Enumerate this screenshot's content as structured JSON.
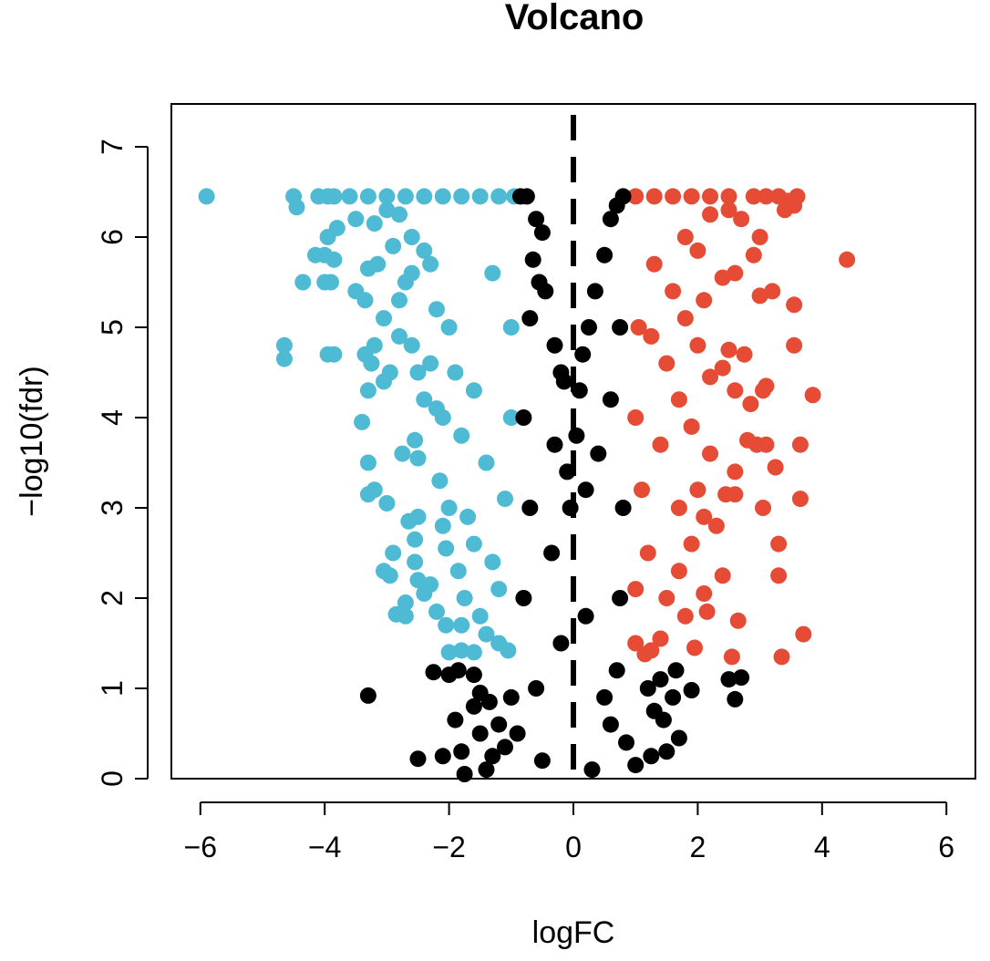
{
  "chart_data": {
    "type": "scatter",
    "title": "Volcano",
    "xlabel": "logFC",
    "ylabel": "−log10(fdr)",
    "xlim": [
      -6.5,
      6.5
    ],
    "ylim": [
      0,
      7
    ],
    "x_ticks": [
      "−6",
      "−4",
      "−2",
      "0",
      "2",
      "4",
      "6"
    ],
    "y_ticks": [
      "0",
      "1",
      "2",
      "3",
      "4",
      "5",
      "6",
      "7"
    ],
    "grid": false,
    "reference_line": {
      "x": 0,
      "style": "dashed",
      "color": "#000000"
    },
    "colors": {
      "down": "#4EBAD4",
      "up": "#E64B35",
      "not_significant": "#000000"
    },
    "series": [
      {
        "name": "",
        "color": "#4EBAD4",
        "points": [
          [
            -5.9,
            6.45
          ],
          [
            -4.5,
            6.45
          ],
          [
            -4.45,
            6.33
          ],
          [
            -4.1,
            6.45
          ],
          [
            -3.95,
            6.45
          ],
          [
            -3.85,
            6.45
          ],
          [
            -3.8,
            6.1
          ],
          [
            -3.95,
            6.0
          ],
          [
            -4.0,
            5.8
          ],
          [
            -3.85,
            5.75
          ],
          [
            -4.15,
            5.8
          ],
          [
            -4.35,
            5.5
          ],
          [
            -4.0,
            5.5
          ],
          [
            -3.9,
            5.5
          ],
          [
            -3.5,
            5.4
          ],
          [
            -3.35,
            5.3
          ],
          [
            -3.3,
            5.65
          ],
          [
            -3.15,
            5.7
          ],
          [
            -3.05,
            5.1
          ],
          [
            -2.8,
            5.3
          ],
          [
            -4.65,
            4.8
          ],
          [
            -4.65,
            4.65
          ],
          [
            -3.95,
            4.7
          ],
          [
            -3.85,
            4.7
          ],
          [
            -3.35,
            4.7
          ],
          [
            -3.2,
            4.8
          ],
          [
            -3.25,
            4.6
          ],
          [
            -3.05,
            4.4
          ],
          [
            -2.95,
            4.5
          ],
          [
            -2.8,
            4.9
          ],
          [
            -2.6,
            4.8
          ],
          [
            -2.5,
            4.5
          ],
          [
            -3.3,
            4.3
          ],
          [
            -3.4,
            3.95
          ],
          [
            -3.3,
            3.5
          ],
          [
            -3.2,
            3.2
          ],
          [
            -3.3,
            3.15
          ],
          [
            -3.0,
            3.05
          ],
          [
            -2.75,
            3.6
          ],
          [
            -2.55,
            3.75
          ],
          [
            -2.5,
            3.55
          ],
          [
            -2.65,
            2.85
          ],
          [
            -2.5,
            2.9
          ],
          [
            -2.55,
            2.65
          ],
          [
            -2.9,
            2.5
          ],
          [
            -3.05,
            2.3
          ],
          [
            -2.95,
            2.25
          ],
          [
            -2.55,
            2.4
          ],
          [
            -2.5,
            2.2
          ],
          [
            -2.4,
            2.05
          ],
          [
            -2.7,
            1.95
          ],
          [
            -2.85,
            1.82
          ],
          [
            -2.7,
            1.8
          ],
          [
            -2.3,
            2.15
          ],
          [
            -2.2,
            1.85
          ],
          [
            -2.05,
            1.7
          ],
          [
            -1.8,
            1.7
          ],
          [
            -2.0,
            1.4
          ],
          [
            -1.8,
            1.42
          ],
          [
            -1.6,
            1.4
          ],
          [
            -2.4,
            4.2
          ],
          [
            -2.3,
            4.6
          ],
          [
            -2.2,
            4.1
          ],
          [
            -2.1,
            4.0
          ],
          [
            -2.15,
            3.3
          ],
          [
            -2.0,
            3.0
          ],
          [
            -2.1,
            2.8
          ],
          [
            -2.05,
            2.55
          ],
          [
            -1.85,
            2.3
          ],
          [
            -1.75,
            2.0
          ],
          [
            -1.6,
            2.6
          ],
          [
            -1.5,
            1.8
          ],
          [
            -2.6,
            5.6
          ],
          [
            -2.3,
            5.7
          ],
          [
            -2.2,
            5.2
          ],
          [
            -2.0,
            5.0
          ],
          [
            -1.9,
            4.5
          ],
          [
            -1.8,
            3.8
          ],
          [
            -3.5,
            6.2
          ],
          [
            -3.2,
            6.15
          ],
          [
            -3.0,
            6.3
          ],
          [
            -2.8,
            6.25
          ],
          [
            -3.6,
            6.45
          ],
          [
            -3.3,
            6.45
          ],
          [
            -3.0,
            6.45
          ],
          [
            -2.7,
            6.45
          ],
          [
            -2.4,
            6.45
          ],
          [
            -2.1,
            6.45
          ],
          [
            -1.8,
            6.45
          ],
          [
            -1.5,
            6.45
          ],
          [
            -1.2,
            6.45
          ],
          [
            -0.95,
            6.45
          ],
          [
            -2.9,
            5.9
          ],
          [
            -2.6,
            6.0
          ],
          [
            -2.4,
            5.85
          ],
          [
            -2.7,
            5.5
          ],
          [
            -1.4,
            1.6
          ],
          [
            -1.2,
            1.5
          ],
          [
            -1.05,
            1.42
          ],
          [
            -1.3,
            2.4
          ],
          [
            -1.1,
            3.1
          ],
          [
            -1.0,
            4.0
          ],
          [
            -1.0,
            5.0
          ],
          [
            -1.3,
            5.6
          ],
          [
            -1.6,
            4.3
          ],
          [
            -1.4,
            3.5
          ],
          [
            -1.7,
            2.9
          ],
          [
            -1.2,
            2.1
          ]
        ]
      },
      {
        "name": "",
        "color": "#E64B35",
        "points": [
          [
            4.4,
            5.75
          ],
          [
            3.55,
            6.35
          ],
          [
            3.45,
            6.4
          ],
          [
            3.3,
            6.45
          ],
          [
            3.1,
            6.45
          ],
          [
            2.9,
            6.45
          ],
          [
            3.55,
            5.25
          ],
          [
            3.2,
            5.4
          ],
          [
            3.0,
            5.35
          ],
          [
            3.55,
            4.8
          ],
          [
            3.85,
            4.25
          ],
          [
            3.1,
            4.35
          ],
          [
            3.05,
            4.3
          ],
          [
            2.85,
            4.15
          ],
          [
            2.75,
            4.7
          ],
          [
            2.5,
            4.75
          ],
          [
            3.65,
            3.7
          ],
          [
            3.1,
            3.7
          ],
          [
            2.95,
            3.7
          ],
          [
            2.8,
            3.75
          ],
          [
            3.25,
            3.45
          ],
          [
            2.6,
            3.15
          ],
          [
            2.45,
            3.15
          ],
          [
            3.65,
            3.1
          ],
          [
            3.05,
            3.0
          ],
          [
            2.3,
            2.8
          ],
          [
            3.3,
            2.6
          ],
          [
            3.3,
            2.25
          ],
          [
            2.4,
            2.25
          ],
          [
            3.7,
            1.6
          ],
          [
            3.35,
            1.35
          ],
          [
            2.65,
            1.75
          ],
          [
            2.55,
            1.35
          ],
          [
            1.95,
            1.45
          ],
          [
            2.1,
            2.05
          ],
          [
            2.15,
            1.85
          ],
          [
            1.4,
            1.55
          ],
          [
            1.25,
            1.42
          ],
          [
            1.15,
            1.38
          ],
          [
            1.5,
            2.0
          ],
          [
            1.8,
            1.8
          ],
          [
            1.7,
            2.3
          ],
          [
            2.0,
            3.2
          ],
          [
            2.1,
            2.9
          ],
          [
            2.6,
            3.4
          ],
          [
            2.2,
            3.6
          ],
          [
            1.9,
            3.9
          ],
          [
            2.6,
            4.3
          ],
          [
            2.4,
            4.55
          ],
          [
            2.2,
            4.45
          ],
          [
            2.0,
            4.8
          ],
          [
            1.8,
            5.1
          ],
          [
            2.1,
            5.3
          ],
          [
            2.4,
            5.55
          ],
          [
            2.6,
            5.6
          ],
          [
            2.9,
            5.8
          ],
          [
            3.0,
            6.0
          ],
          [
            2.7,
            6.2
          ],
          [
            2.5,
            6.3
          ],
          [
            2.2,
            6.25
          ],
          [
            1.0,
            6.45
          ],
          [
            1.3,
            6.45
          ],
          [
            1.6,
            6.45
          ],
          [
            1.9,
            6.45
          ],
          [
            2.2,
            6.45
          ],
          [
            2.5,
            6.45
          ],
          [
            3.6,
            6.45
          ],
          [
            3.4,
            6.3
          ],
          [
            1.2,
            2.5
          ],
          [
            1.1,
            3.2
          ],
          [
            1.0,
            4.0
          ],
          [
            1.05,
            5.0
          ],
          [
            1.3,
            5.7
          ],
          [
            1.6,
            5.4
          ],
          [
            1.5,
            4.6
          ],
          [
            1.4,
            3.7
          ],
          [
            1.7,
            3.0
          ],
          [
            1.9,
            2.6
          ],
          [
            1.0,
            1.5
          ],
          [
            1.0,
            2.1
          ],
          [
            1.8,
            6.0
          ],
          [
            2.0,
            5.85
          ],
          [
            1.7,
            4.2
          ],
          [
            1.25,
            4.9
          ]
        ]
      },
      {
        "name": "",
        "color": "#000000",
        "points": [
          [
            -3.3,
            0.92
          ],
          [
            -2.5,
            0.22
          ],
          [
            -2.1,
            0.25
          ],
          [
            -1.9,
            0.65
          ],
          [
            -1.75,
            0.05
          ],
          [
            -1.8,
            0.3
          ],
          [
            -2.25,
            1.18
          ],
          [
            -2.0,
            1.15
          ],
          [
            -1.85,
            1.2
          ],
          [
            -1.6,
            1.15
          ],
          [
            -1.5,
            0.95
          ],
          [
            -1.35,
            0.85
          ],
          [
            -1.5,
            0.5
          ],
          [
            -1.3,
            0.25
          ],
          [
            -1.4,
            0.1
          ],
          [
            -1.6,
            0.8
          ],
          [
            -1.2,
            0.6
          ],
          [
            -1.1,
            0.35
          ],
          [
            -0.85,
            6.45
          ],
          [
            -0.75,
            6.45
          ],
          [
            -0.6,
            6.2
          ],
          [
            -0.5,
            6.05
          ],
          [
            -0.65,
            5.75
          ],
          [
            -0.55,
            5.5
          ],
          [
            -0.45,
            5.4
          ],
          [
            -0.7,
            5.1
          ],
          [
            -0.3,
            4.8
          ],
          [
            -0.2,
            4.5
          ],
          [
            -0.15,
            4.4
          ],
          [
            -0.3,
            3.7
          ],
          [
            -0.1,
            3.4
          ],
          [
            -0.35,
            2.5
          ],
          [
            -0.05,
            3.0
          ],
          [
            -0.8,
            4.0
          ],
          [
            -0.7,
            3.0
          ],
          [
            -0.8,
            2.0
          ],
          [
            0.8,
            6.45
          ],
          [
            0.7,
            6.35
          ],
          [
            0.6,
            6.2
          ],
          [
            0.5,
            5.8
          ],
          [
            0.35,
            5.4
          ],
          [
            0.25,
            5.0
          ],
          [
            0.15,
            4.7
          ],
          [
            0.1,
            4.3
          ],
          [
            0.05,
            3.8
          ],
          [
            0.2,
            3.2
          ],
          [
            0.4,
            3.6
          ],
          [
            0.6,
            4.2
          ],
          [
            0.75,
            5.0
          ],
          [
            0.8,
            3.0
          ],
          [
            0.75,
            2.0
          ],
          [
            0.7,
            1.2
          ],
          [
            1.2,
            1.0
          ],
          [
            1.4,
            1.1
          ],
          [
            1.6,
            0.9
          ],
          [
            1.65,
            1.2
          ],
          [
            1.45,
            0.65
          ],
          [
            1.3,
            0.75
          ],
          [
            1.0,
            0.15
          ],
          [
            1.25,
            0.25
          ],
          [
            1.5,
            0.3
          ],
          [
            1.7,
            0.45
          ],
          [
            1.9,
            0.98
          ],
          [
            2.5,
            1.1
          ],
          [
            2.6,
            0.88
          ],
          [
            2.7,
            1.12
          ],
          [
            -0.9,
            0.5
          ],
          [
            -0.5,
            0.2
          ],
          [
            0.3,
            0.1
          ],
          [
            0.6,
            0.6
          ],
          [
            -0.2,
            1.5
          ],
          [
            0.2,
            1.8
          ],
          [
            -0.6,
            1.0
          ],
          [
            0.5,
            0.9
          ],
          [
            0.85,
            0.4
          ],
          [
            -1.0,
            0.9
          ]
        ]
      }
    ]
  }
}
